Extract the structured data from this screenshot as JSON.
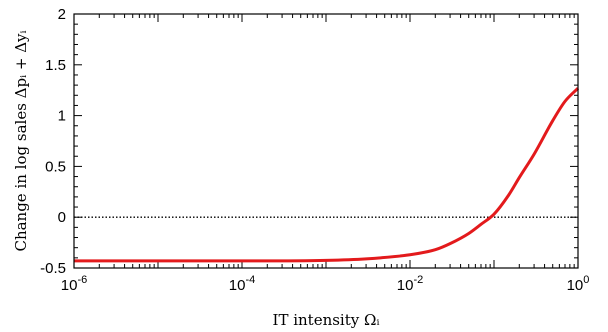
{
  "chart_data": {
    "type": "line",
    "xscale": "log",
    "xlim": [
      1e-06,
      1
    ],
    "ylim": [
      -0.5,
      2
    ],
    "xlabel": "IT intensity Ωᵢ",
    "ylabel": "Change in log sales Δpᵢ + Δyᵢ",
    "x_ticks": [
      {
        "value": 1e-06,
        "base": "10",
        "exp": "-6"
      },
      {
        "value": 0.0001,
        "base": "10",
        "exp": "-4"
      },
      {
        "value": 0.01,
        "base": "10",
        "exp": "-2"
      },
      {
        "value": 1,
        "base": "10",
        "exp": "0"
      }
    ],
    "y_ticks": [
      {
        "value": -0.5,
        "label": "-0.5"
      },
      {
        "value": 0,
        "label": "0"
      },
      {
        "value": 0.5,
        "label": "0.5"
      },
      {
        "value": 1,
        "label": "1"
      },
      {
        "value": 1.5,
        "label": "1.5"
      },
      {
        "value": 2,
        "label": "2"
      }
    ],
    "reference_line": {
      "y": 0,
      "style": "dotted",
      "color": "#000000"
    },
    "series": [
      {
        "color": "#e31a1c",
        "x": [
          1e-06,
          1e-05,
          0.0001,
          0.001,
          0.003,
          0.01,
          0.02,
          0.03,
          0.05,
          0.07,
          0.1,
          0.15,
          0.2,
          0.3,
          0.5,
          0.7,
          1.0
        ],
        "y": [
          -0.43,
          -0.43,
          -0.43,
          -0.425,
          -0.41,
          -0.37,
          -0.32,
          -0.26,
          -0.16,
          -0.07,
          0.03,
          0.22,
          0.39,
          0.62,
          0.95,
          1.14,
          1.27
        ]
      }
    ]
  }
}
